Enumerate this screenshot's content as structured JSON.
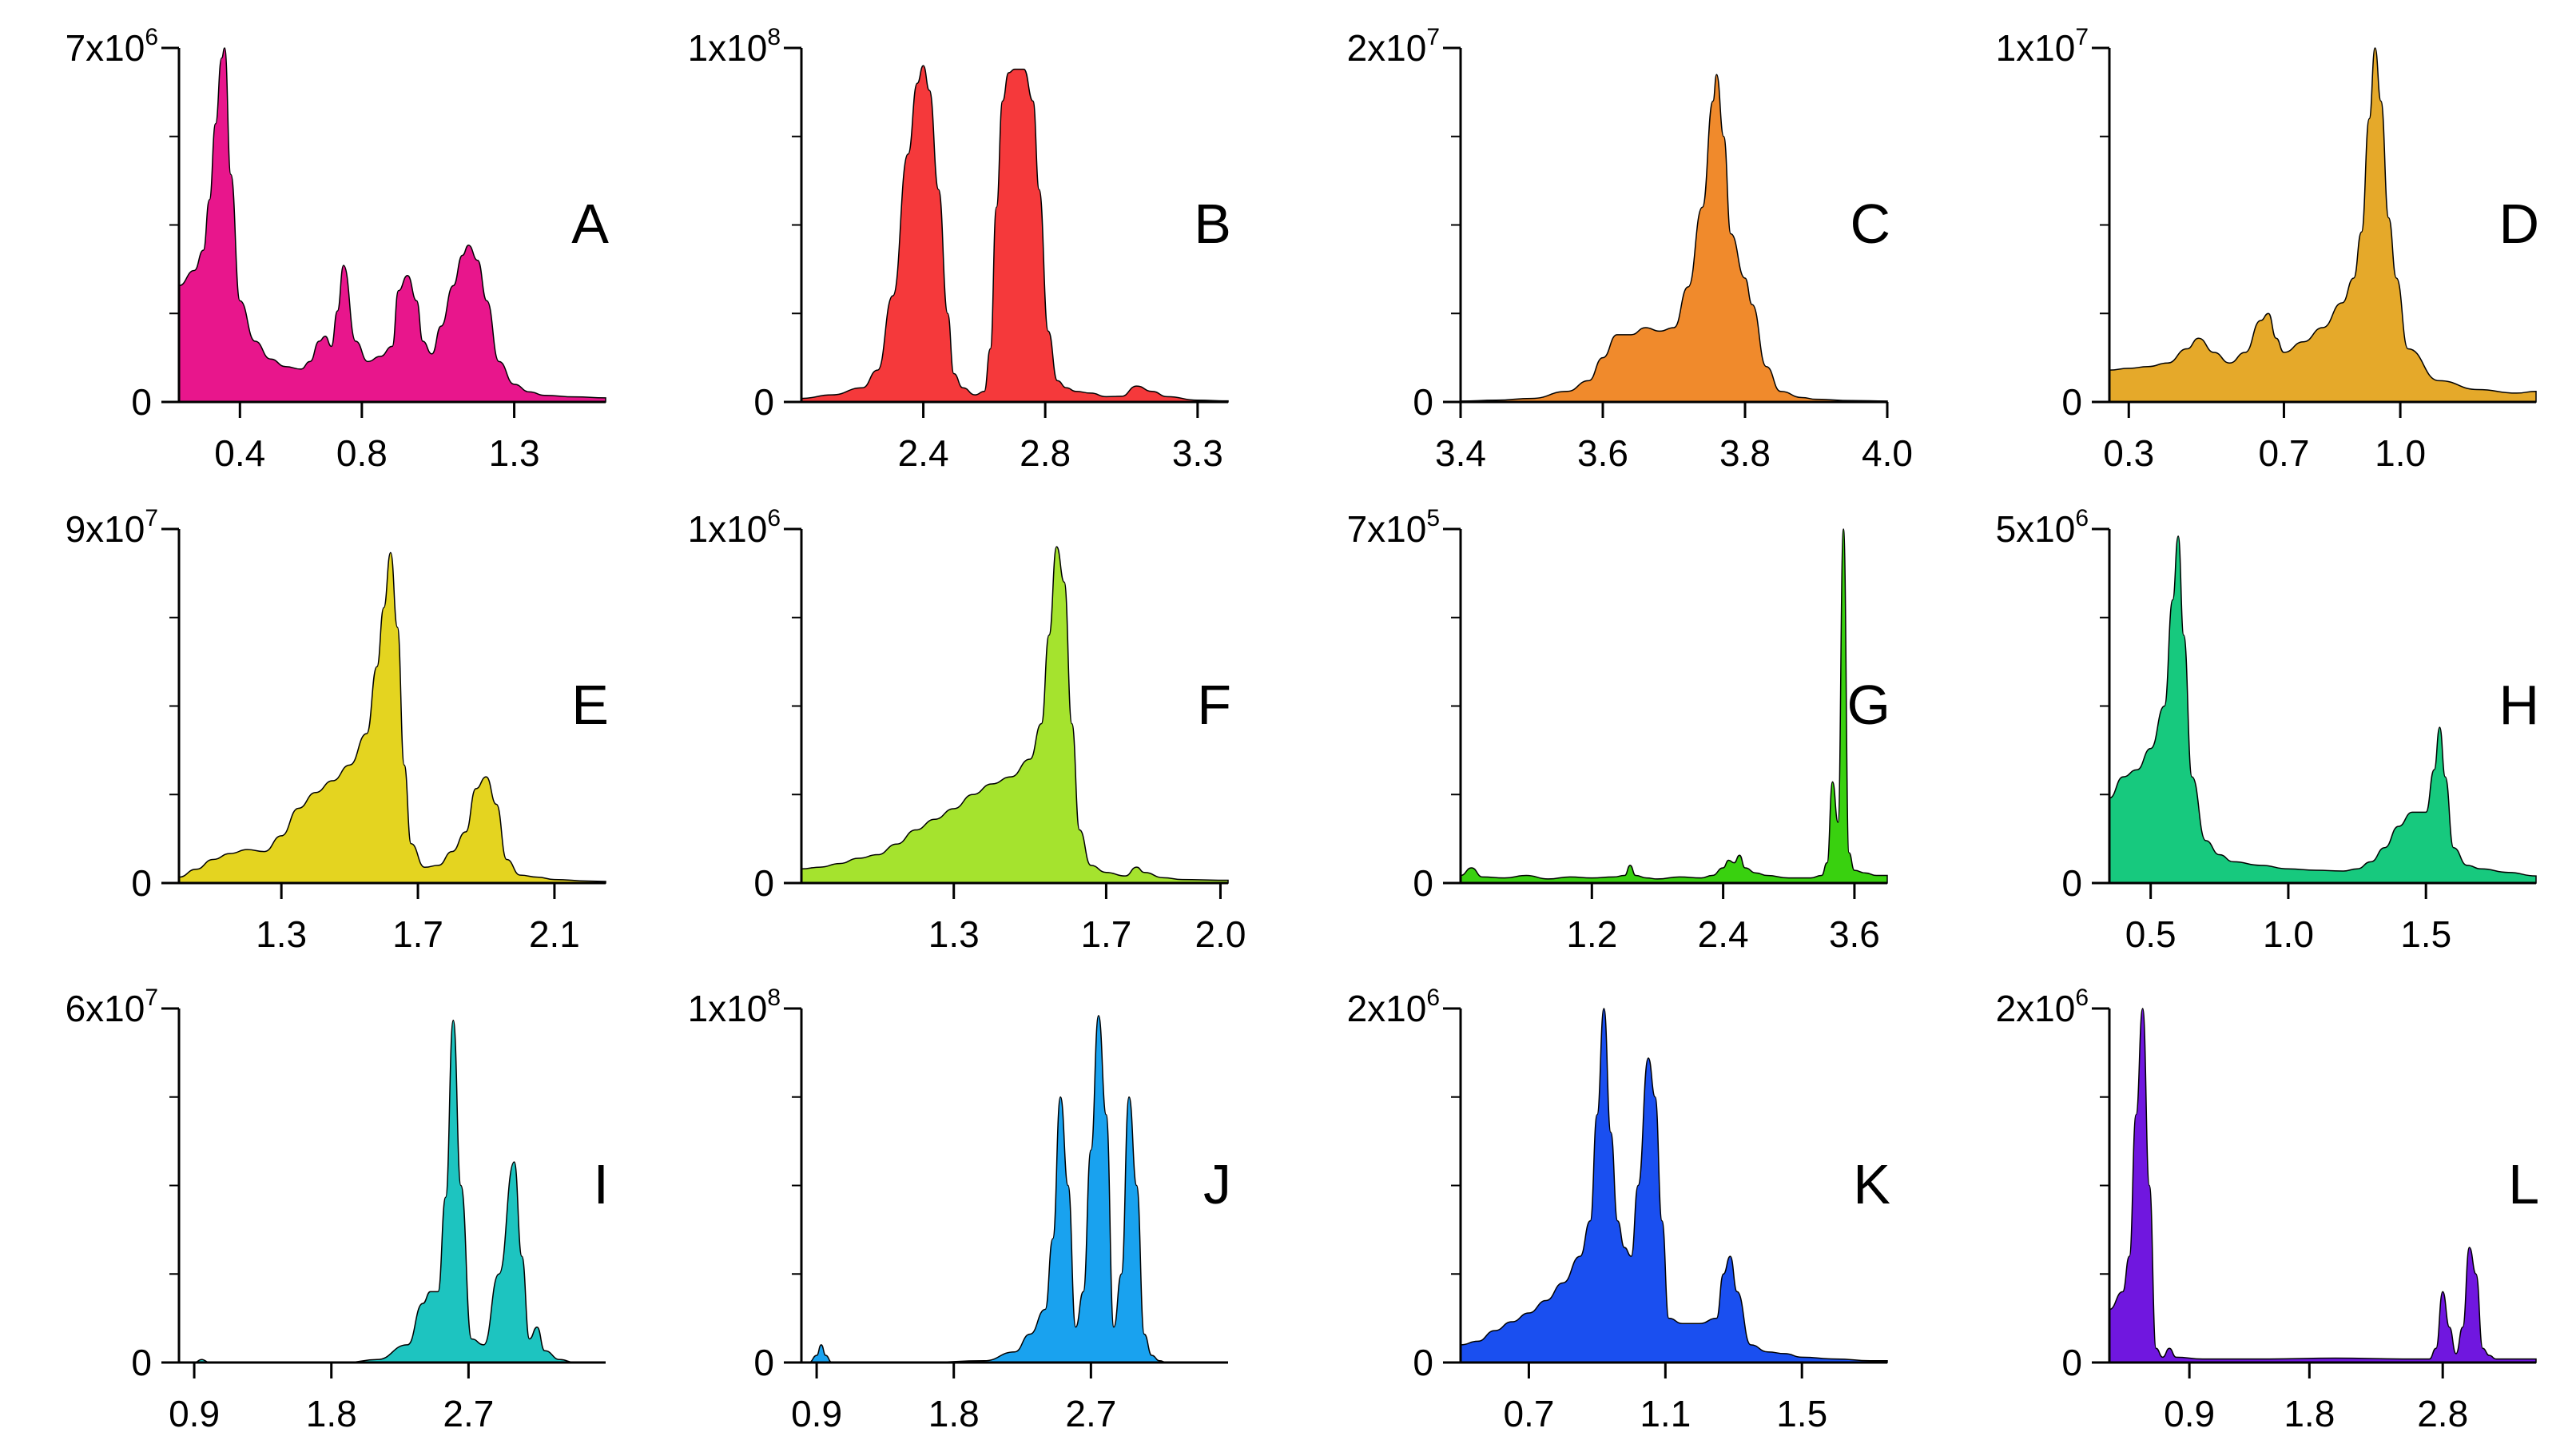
{
  "chart_data": [
    {
      "panel": "A",
      "type": "area",
      "color": "#e8168c",
      "ylim": [
        0,
        7000000
      ],
      "ymax_label": {
        "base": "7x10",
        "exp": "6"
      },
      "xlim": [
        0.2,
        1.6
      ],
      "xticks": [
        0.4,
        0.8,
        1.3
      ],
      "xtick_labels": [
        "0.4",
        "0.8",
        "1.3"
      ],
      "x": [
        0.2,
        0.25,
        0.28,
        0.3,
        0.32,
        0.34,
        0.35,
        0.37,
        0.4,
        0.45,
        0.5,
        0.55,
        0.6,
        0.63,
        0.66,
        0.68,
        0.7,
        0.72,
        0.74,
        0.78,
        0.82,
        0.86,
        0.9,
        0.92,
        0.95,
        0.98,
        1.0,
        1.03,
        1.06,
        1.1,
        1.13,
        1.15,
        1.18,
        1.21,
        1.25,
        1.3,
        1.35,
        1.4,
        1.5,
        1.6
      ],
      "y": [
        2300000,
        2600000,
        3000000,
        4000000,
        5500000,
        6800000,
        7000000,
        4500000,
        2000000,
        1200000,
        850000,
        700000,
        650000,
        800000,
        1200000,
        1300000,
        1100000,
        1800000,
        2700000,
        1200000,
        800000,
        900000,
        1100000,
        2200000,
        2500000,
        2000000,
        1200000,
        950000,
        1500000,
        2300000,
        2900000,
        3100000,
        2800000,
        2000000,
        800000,
        350000,
        200000,
        130000,
        100000,
        80000
      ]
    },
    {
      "panel": "B",
      "type": "area",
      "color": "#f5393b",
      "ylim": [
        0,
        100000000
      ],
      "ymax_label": {
        "base": "1x10",
        "exp": "8"
      },
      "xlim": [
        2.0,
        3.4
      ],
      "xticks": [
        2.4,
        2.8,
        3.3
      ],
      "xtick_labels": [
        "2.4",
        "2.8",
        "3.3"
      ],
      "x": [
        2.0,
        2.1,
        2.2,
        2.25,
        2.3,
        2.35,
        2.38,
        2.4,
        2.42,
        2.45,
        2.48,
        2.5,
        2.53,
        2.57,
        2.6,
        2.62,
        2.64,
        2.66,
        2.68,
        2.7,
        2.73,
        2.76,
        2.78,
        2.81,
        2.84,
        2.87,
        2.9,
        2.95,
        3.0,
        3.05,
        3.1,
        3.15,
        3.2,
        3.3,
        3.4
      ],
      "y": [
        1000000,
        2000000,
        4000000,
        9000000,
        30000000,
        70000000,
        90000000,
        95000000,
        88000000,
        60000000,
        25000000,
        8000000,
        4000000,
        2000000,
        3000000,
        15000000,
        55000000,
        85000000,
        93000000,
        94000000,
        94000000,
        85000000,
        60000000,
        20000000,
        6000000,
        4000000,
        3000000,
        2500000,
        1500000,
        1600000,
        4500000,
        3000000,
        1500000,
        500000,
        300000
      ]
    },
    {
      "panel": "C",
      "type": "area",
      "color": "#f08a2c",
      "ylim": [
        0,
        20000000
      ],
      "ymax_label": {
        "base": "2x10",
        "exp": "7"
      },
      "xlim": [
        3.4,
        4.0
      ],
      "xticks": [
        3.4,
        3.6,
        3.8,
        4.0
      ],
      "xtick_labels": [
        "3.4",
        "3.6",
        "3.8",
        "4.0"
      ],
      "x": [
        3.4,
        3.45,
        3.5,
        3.55,
        3.58,
        3.6,
        3.62,
        3.64,
        3.66,
        3.68,
        3.7,
        3.72,
        3.74,
        3.755,
        3.76,
        3.77,
        3.78,
        3.8,
        3.81,
        3.83,
        3.85,
        3.88,
        3.9,
        3.95,
        4.0
      ],
      "y": [
        50000,
        100000,
        200000,
        600000,
        1200000,
        2500000,
        3800000,
        3800000,
        4200000,
        4000000,
        4200000,
        6500000,
        11000000,
        17000000,
        18500000,
        15000000,
        9500000,
        7000000,
        5500000,
        2000000,
        600000,
        250000,
        150000,
        80000,
        50000
      ]
    },
    {
      "panel": "D",
      "type": "area",
      "color": "#e5a92a",
      "ylim": [
        0,
        10000000
      ],
      "ymax_label": {
        "base": "1x10",
        "exp": "7"
      },
      "xlim": [
        0.25,
        1.35
      ],
      "xticks": [
        0.3,
        0.7,
        1.0
      ],
      "xtick_labels": [
        "0.3",
        "0.7",
        "1.0"
      ],
      "x": [
        0.25,
        0.3,
        0.35,
        0.4,
        0.45,
        0.48,
        0.52,
        0.56,
        0.6,
        0.64,
        0.66,
        0.68,
        0.7,
        0.75,
        0.8,
        0.85,
        0.88,
        0.9,
        0.92,
        0.935,
        0.95,
        0.97,
        0.99,
        1.02,
        1.1,
        1.2,
        1.3,
        1.35
      ],
      "y": [
        900000,
        950000,
        1000000,
        1100000,
        1500000,
        1800000,
        1400000,
        1100000,
        1400000,
        2300000,
        2500000,
        1800000,
        1400000,
        1700000,
        2100000,
        2800000,
        3500000,
        4800000,
        8000000,
        10000000,
        8500000,
        5200000,
        3500000,
        1500000,
        600000,
        350000,
        250000,
        300000
      ]
    },
    {
      "panel": "E",
      "type": "area",
      "color": "#e4d420",
      "ylim": [
        0,
        90000000
      ],
      "ymax_label": {
        "base": "9x10",
        "exp": "7"
      },
      "xlim": [
        1.0,
        2.25
      ],
      "xticks": [
        1.3,
        1.7,
        2.1
      ],
      "xtick_labels": [
        "1.3",
        "1.7",
        "2.1"
      ],
      "x": [
        1.0,
        1.05,
        1.1,
        1.15,
        1.2,
        1.25,
        1.3,
        1.35,
        1.4,
        1.45,
        1.5,
        1.55,
        1.58,
        1.6,
        1.62,
        1.64,
        1.66,
        1.68,
        1.72,
        1.76,
        1.8,
        1.84,
        1.87,
        1.9,
        1.93,
        1.96,
        2.0,
        2.05,
        2.1,
        2.2,
        2.25
      ],
      "y": [
        1500000,
        3500000,
        6000000,
        7500000,
        8500000,
        8000000,
        12000000,
        19000000,
        23000000,
        26000000,
        30000000,
        38000000,
        55000000,
        70000000,
        84000000,
        65000000,
        30000000,
        10000000,
        4000000,
        4500000,
        8000000,
        13000000,
        24000000,
        27000000,
        20000000,
        6000000,
        2000000,
        1500000,
        900000,
        500000,
        400000
      ]
    },
    {
      "panel": "F",
      "type": "area",
      "color": "#a5e32e",
      "ylim": [
        0,
        1000000
      ],
      "ymax_label": {
        "base": "1x10",
        "exp": "6"
      },
      "xlim": [
        0.9,
        2.02
      ],
      "xticks": [
        1.3,
        1.7,
        2.0
      ],
      "xtick_labels": [
        "1.3",
        "1.7",
        "2.0"
      ],
      "x": [
        0.9,
        0.95,
        1.0,
        1.05,
        1.1,
        1.15,
        1.2,
        1.25,
        1.3,
        1.35,
        1.4,
        1.45,
        1.5,
        1.53,
        1.55,
        1.57,
        1.59,
        1.61,
        1.63,
        1.66,
        1.7,
        1.75,
        1.78,
        1.8,
        1.85,
        1.9,
        2.0,
        2.02
      ],
      "y": [
        40000,
        45000,
        55000,
        70000,
        80000,
        110000,
        150000,
        180000,
        210000,
        250000,
        280000,
        300000,
        350000,
        450000,
        700000,
        950000,
        850000,
        450000,
        150000,
        50000,
        30000,
        20000,
        45000,
        30000,
        15000,
        10000,
        8000,
        8000
      ]
    },
    {
      "panel": "G",
      "type": "area",
      "color": "#39d10f",
      "ylim": [
        0,
        700000
      ],
      "ymax_label": {
        "base": "7x10",
        "exp": "5"
      },
      "xlim": [
        0.0,
        3.9
      ],
      "xticks": [
        1.2,
        2.4,
        3.6
      ],
      "xtick_labels": [
        "1.2",
        "2.4",
        "3.6"
      ],
      "x": [
        0.0,
        0.1,
        0.2,
        0.4,
        0.6,
        0.8,
        1.0,
        1.2,
        1.4,
        1.5,
        1.55,
        1.6,
        1.7,
        1.8,
        2.0,
        2.2,
        2.3,
        2.4,
        2.45,
        2.5,
        2.55,
        2.6,
        2.7,
        2.8,
        3.0,
        3.2,
        3.3,
        3.35,
        3.4,
        3.45,
        3.5,
        3.55,
        3.6,
        3.7,
        3.8,
        3.9
      ],
      "y": [
        15000,
        30000,
        12000,
        10000,
        15000,
        8000,
        12000,
        10000,
        12000,
        15000,
        35000,
        15000,
        10000,
        8000,
        12000,
        10000,
        15000,
        30000,
        45000,
        40000,
        55000,
        30000,
        20000,
        15000,
        10000,
        10000,
        15000,
        40000,
        200000,
        120000,
        720000,
        60000,
        25000,
        20000,
        15000,
        15000
      ]
    },
    {
      "panel": "H",
      "type": "area",
      "color": "#17c97e",
      "ylim": [
        0,
        5000000
      ],
      "ymax_label": {
        "base": "5x10",
        "exp": "6"
      },
      "xlim": [
        0.35,
        1.9
      ],
      "xticks": [
        0.5,
        1.0,
        1.5
      ],
      "xtick_labels": [
        "0.5",
        "1.0",
        "1.5"
      ],
      "x": [
        0.35,
        0.4,
        0.45,
        0.5,
        0.55,
        0.58,
        0.6,
        0.62,
        0.65,
        0.7,
        0.75,
        0.8,
        0.9,
        1.0,
        1.1,
        1.2,
        1.25,
        1.3,
        1.35,
        1.4,
        1.45,
        1.5,
        1.53,
        1.55,
        1.57,
        1.6,
        1.65,
        1.7,
        1.8,
        1.9
      ],
      "y": [
        1200000,
        1500000,
        1600000,
        1900000,
        2500000,
        4000000,
        4900000,
        3500000,
        1500000,
        600000,
        400000,
        300000,
        250000,
        200000,
        180000,
        170000,
        200000,
        300000,
        500000,
        800000,
        1000000,
        1000000,
        1600000,
        2200000,
        1500000,
        500000,
        250000,
        200000,
        150000,
        100000
      ]
    },
    {
      "panel": "I",
      "type": "area",
      "color": "#1dc4c0",
      "ylim": [
        0,
        60000000
      ],
      "ymax_label": {
        "base": "6x10",
        "exp": "7"
      },
      "xlim": [
        0.8,
        3.6
      ],
      "xticks": [
        0.9,
        1.8,
        2.7
      ],
      "xtick_labels": [
        "0.9",
        "1.8",
        "2.7"
      ],
      "x": [
        0.8,
        0.9,
        0.95,
        1.0,
        1.1,
        1.5,
        1.9,
        2.1,
        2.3,
        2.4,
        2.45,
        2.5,
        2.55,
        2.6,
        2.65,
        2.72,
        2.8,
        2.9,
        3.0,
        3.05,
        3.1,
        3.15,
        3.2,
        3.3,
        3.4,
        3.6
      ],
      "y": [
        0,
        0,
        500000,
        0,
        0,
        0,
        0,
        500000,
        3000000,
        10000000,
        12000000,
        12000000,
        28000000,
        58000000,
        30000000,
        4000000,
        3000000,
        15000000,
        34000000,
        18000000,
        4000000,
        6000000,
        2000000,
        500000,
        0,
        0
      ]
    },
    {
      "panel": "J",
      "type": "area",
      "color": "#19a2ef",
      "ylim": [
        0,
        100000000
      ],
      "ymax_label": {
        "base": "1x10",
        "exp": "8"
      },
      "xlim": [
        0.8,
        3.6
      ],
      "xticks": [
        0.9,
        1.8,
        2.7
      ],
      "xtick_labels": [
        "0.9",
        "1.8",
        "2.7"
      ],
      "x": [
        0.8,
        0.85,
        0.9,
        0.93,
        0.96,
        1.0,
        1.2,
        1.6,
        2.0,
        2.2,
        2.3,
        2.4,
        2.45,
        2.5,
        2.55,
        2.6,
        2.65,
        2.7,
        2.75,
        2.8,
        2.85,
        2.9,
        2.95,
        3.0,
        3.05,
        3.1,
        3.15,
        3.2,
        3.3,
        3.4,
        3.6
      ],
      "y": [
        0,
        0,
        2000000,
        5000000,
        2000000,
        0,
        0,
        0,
        500000,
        3000000,
        8000000,
        15000000,
        35000000,
        75000000,
        50000000,
        10000000,
        20000000,
        60000000,
        98000000,
        70000000,
        10000000,
        25000000,
        75000000,
        50000000,
        8000000,
        2000000,
        500000,
        0,
        0,
        0,
        0
      ]
    },
    {
      "panel": "K",
      "type": "area",
      "color": "#1a4ff0",
      "ylim": [
        0,
        2000000
      ],
      "ymax_label": {
        "base": "2x10",
        "exp": "6"
      },
      "xlim": [
        0.5,
        1.75
      ],
      "xticks": [
        0.7,
        1.1,
        1.5
      ],
      "xtick_labels": [
        "0.7",
        "1.1",
        "1.5"
      ],
      "x": [
        0.5,
        0.55,
        0.6,
        0.65,
        0.7,
        0.75,
        0.8,
        0.85,
        0.88,
        0.9,
        0.92,
        0.94,
        0.96,
        0.98,
        1.0,
        1.02,
        1.05,
        1.07,
        1.09,
        1.11,
        1.15,
        1.2,
        1.25,
        1.27,
        1.29,
        1.31,
        1.35,
        1.4,
        1.45,
        1.5,
        1.6,
        1.7,
        1.75
      ],
      "y": [
        100000,
        120000,
        180000,
        230000,
        280000,
        350000,
        450000,
        600000,
        800000,
        1400000,
        2000000,
        1300000,
        800000,
        650000,
        600000,
        1000000,
        1720000,
        1500000,
        800000,
        250000,
        220000,
        220000,
        250000,
        500000,
        600000,
        400000,
        100000,
        60000,
        50000,
        30000,
        20000,
        10000,
        10000
      ]
    },
    {
      "panel": "L",
      "type": "area",
      "color": "#7017df",
      "ylim": [
        0,
        2000000
      ],
      "ymax_label": {
        "base": "2x10",
        "exp": "6"
      },
      "xlim": [
        0.3,
        3.5
      ],
      "xticks": [
        0.9,
        1.8,
        2.8
      ],
      "xtick_labels": [
        "0.9",
        "1.8",
        "2.8"
      ],
      "x": [
        0.3,
        0.4,
        0.45,
        0.5,
        0.55,
        0.6,
        0.65,
        0.7,
        0.75,
        0.8,
        1.0,
        1.5,
        2.0,
        2.5,
        2.7,
        2.75,
        2.8,
        2.85,
        2.9,
        2.95,
        3.0,
        3.05,
        3.1,
        3.15,
        3.2,
        3.3,
        3.5
      ],
      "y": [
        300000,
        400000,
        600000,
        1400000,
        2000000,
        1000000,
        80000,
        30000,
        80000,
        30000,
        20000,
        20000,
        25000,
        20000,
        20000,
        80000,
        400000,
        200000,
        50000,
        200000,
        650000,
        500000,
        80000,
        40000,
        20000,
        20000,
        20000
      ]
    }
  ]
}
